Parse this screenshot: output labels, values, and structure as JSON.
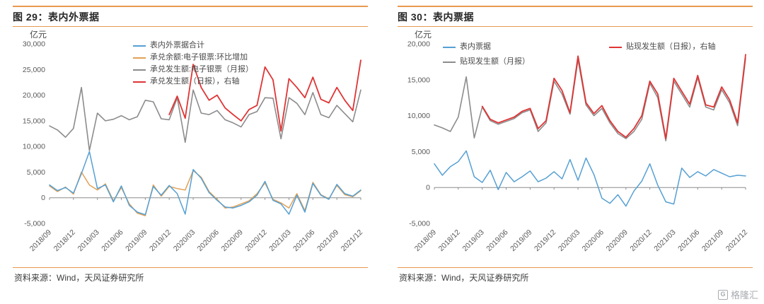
{
  "colors": {
    "rule_orange": "#E8994F",
    "series_blue": "#56A0D3",
    "series_orange": "#E2A056",
    "series_gray": "#8C8C8C",
    "series_red": "#E03434"
  },
  "watermark": {
    "text": "格隆汇",
    "icon": "G"
  },
  "figures": [
    {
      "title": "图 29：表内外票据",
      "ylabel": "亿元",
      "source_label": "资料来源：",
      "source_text": "Wind，天风证券研究所"
    },
    {
      "title": "图 30：表内票据",
      "ylabel": "亿元",
      "source_label": "资料来源：",
      "source_text": "Wind，天风证券研究所"
    }
  ],
  "chart_data": [
    {
      "type": "line",
      "title": "图 29：表内外票据",
      "ylabel": "亿元",
      "ylim": [
        -5000,
        30000
      ],
      "ytick_step": 5000,
      "yticks": [
        "-5,000",
        "0",
        "5,000",
        "10,000",
        "15,000",
        "20,000",
        "25,000",
        "30,000"
      ],
      "x_tick_every": 3,
      "x_tick_labels": [
        "2018/09",
        "2018/12",
        "2019/03",
        "2019/06",
        "2019/09",
        "2019/12",
        "2020/03",
        "2020/06",
        "2020/09",
        "2020/12",
        "2021/03",
        "2021/06",
        "2021/09",
        "2021/12"
      ],
      "legend_layout": "column",
      "grid": false,
      "x": [
        "2018/09",
        "2018/10",
        "2018/11",
        "2018/12",
        "2019/01",
        "2019/02",
        "2019/03",
        "2019/04",
        "2019/05",
        "2019/06",
        "2019/07",
        "2019/08",
        "2019/09",
        "2019/10",
        "2019/11",
        "2019/12",
        "2020/01",
        "2020/02",
        "2020/03",
        "2020/04",
        "2020/05",
        "2020/06",
        "2020/07",
        "2020/08",
        "2020/09",
        "2020/10",
        "2020/11",
        "2020/12",
        "2021/01",
        "2021/02",
        "2021/03",
        "2021/04",
        "2021/05",
        "2021/06",
        "2021/07",
        "2021/08",
        "2021/09",
        "2021/10",
        "2021/11",
        "2021/12"
      ],
      "series": [
        {
          "name": "表内外票据合计",
          "color": "#56A0D3",
          "zorder": 4,
          "width": 1.5,
          "values": [
            2500,
            1400,
            2000,
            900,
            4700,
            9000,
            1800,
            2500,
            -800,
            2300,
            -1500,
            -2800,
            -3300,
            2200,
            500,
            2400,
            800,
            -3200,
            5500,
            3800,
            1000,
            -500,
            -1800,
            -2000,
            -1500,
            -800,
            500,
            3200,
            -500,
            -1200,
            -3200,
            500,
            -2800,
            2800,
            500,
            -300,
            2600,
            800,
            300,
            1500
          ]
        },
        {
          "name": "承兑余额:电子银票:环比增加",
          "color": "#E2A056",
          "zorder": 3,
          "width": 1.5,
          "values": [
            2300,
            1200,
            2100,
            700,
            5000,
            2500,
            1500,
            2700,
            -600,
            2000,
            -1200,
            -3000,
            -3500,
            2500,
            300,
            2200,
            1800,
            1500,
            5300,
            4000,
            1200,
            -300,
            -2000,
            -1800,
            -1200,
            -600,
            800,
            2900,
            -300,
            -1000,
            -2000,
            800,
            -2500,
            3000,
            600,
            -200,
            2400,
            600,
            200,
            1400
          ]
        },
        {
          "name": "承兑发生额:电子银票（月报）",
          "color": "#8C8C8C",
          "zorder": 1,
          "width": 1.6,
          "values": [
            14000,
            13200,
            11800,
            13500,
            21500,
            9200,
            16500,
            15000,
            15300,
            16000,
            15200,
            15800,
            19000,
            18700,
            15400,
            15200,
            19500,
            10800,
            21000,
            16500,
            16200,
            17000,
            15200,
            14600,
            13800,
            16200,
            16800,
            19500,
            19400,
            11500,
            19500,
            18400,
            16200,
            20500,
            16200,
            15600,
            18000,
            16400,
            14800,
            21000
          ]
        },
        {
          "name": "承兑发生额（日报），右轴",
          "color": "#E03434",
          "zorder": 2,
          "width": 1.8,
          "values": [
            null,
            null,
            null,
            null,
            null,
            null,
            null,
            null,
            null,
            null,
            null,
            null,
            null,
            null,
            null,
            16200,
            19800,
            15500,
            26000,
            21500,
            19000,
            20000,
            17500,
            16200,
            15000,
            17200,
            18000,
            25500,
            23000,
            13000,
            23200,
            21500,
            19500,
            23500,
            19200,
            18500,
            21500,
            19000,
            17000,
            26800
          ]
        }
      ]
    },
    {
      "type": "line",
      "title": "图 30：表内票据",
      "ylabel": "亿元",
      "ylim": [
        -5000,
        20000
      ],
      "ytick_step": 5000,
      "yticks": [
        "-5,000",
        "0",
        "5,000",
        "10,000",
        "15,000",
        "20,000"
      ],
      "x_tick_every": 3,
      "x_tick_labels": [
        "2018/09",
        "2018/12",
        "2019/03",
        "2019/06",
        "2019/09",
        "2019/12",
        "2020/03",
        "2020/06",
        "2020/09",
        "2020/12",
        "2021/03",
        "2021/06",
        "2021/09",
        "2021/12"
      ],
      "legend_layout": "grid2",
      "grid": false,
      "x": [
        "2018/09",
        "2018/10",
        "2018/11",
        "2018/12",
        "2019/01",
        "2019/02",
        "2019/03",
        "2019/04",
        "2019/05",
        "2019/06",
        "2019/07",
        "2019/08",
        "2019/09",
        "2019/10",
        "2019/11",
        "2019/12",
        "2020/01",
        "2020/02",
        "2020/03",
        "2020/04",
        "2020/05",
        "2020/06",
        "2020/07",
        "2020/08",
        "2020/09",
        "2020/10",
        "2020/11",
        "2020/12",
        "2021/01",
        "2021/02",
        "2021/03",
        "2021/04",
        "2021/05",
        "2021/06",
        "2021/07",
        "2021/08",
        "2021/09",
        "2021/10",
        "2021/11",
        "2021/12"
      ],
      "series": [
        {
          "name": "表内票据",
          "color": "#56A0D3",
          "zorder": 3,
          "width": 1.5,
          "values": [
            3300,
            1700,
            2900,
            3600,
            5100,
            1500,
            700,
            2400,
            -300,
            2100,
            800,
            1500,
            2300,
            800,
            1300,
            2200,
            1200,
            3900,
            1000,
            4100,
            1800,
            -1500,
            -2200,
            -1000,
            -2600,
            -500,
            900,
            3300,
            300,
            -2000,
            -2300,
            2700,
            1400,
            2200,
            1600,
            2500,
            2000,
            1500,
            1700,
            1600
          ]
        },
        {
          "name": "贴现发生额（日报），右轴",
          "color": "#E03434",
          "zorder": 2,
          "width": 1.8,
          "values": [
            null,
            null,
            null,
            null,
            null,
            null,
            11300,
            9500,
            9000,
            9400,
            9800,
            10600,
            11000,
            8200,
            9300,
            15200,
            13500,
            10400,
            18300,
            11800,
            10300,
            11400,
            9300,
            7800,
            7000,
            8200,
            10000,
            14800,
            13000,
            6800,
            15200,
            13400,
            11600,
            15600,
            11500,
            11200,
            14000,
            12200,
            9000,
            18500
          ]
        },
        {
          "name": "贴现发生额（月报）",
          "color": "#8C8C8C",
          "zorder": 1,
          "width": 1.6,
          "values": [
            8700,
            8300,
            7800,
            9800,
            15400,
            6900,
            11200,
            9300,
            8800,
            9200,
            9600,
            10400,
            10800,
            7800,
            9000,
            14800,
            13000,
            10200,
            17800,
            11500,
            10000,
            11000,
            9000,
            7500,
            6800,
            7800,
            9500,
            14500,
            12500,
            6500,
            14800,
            13000,
            11200,
            15300,
            11200,
            10800,
            13600,
            11800,
            8600,
            18000
          ]
        }
      ]
    }
  ]
}
